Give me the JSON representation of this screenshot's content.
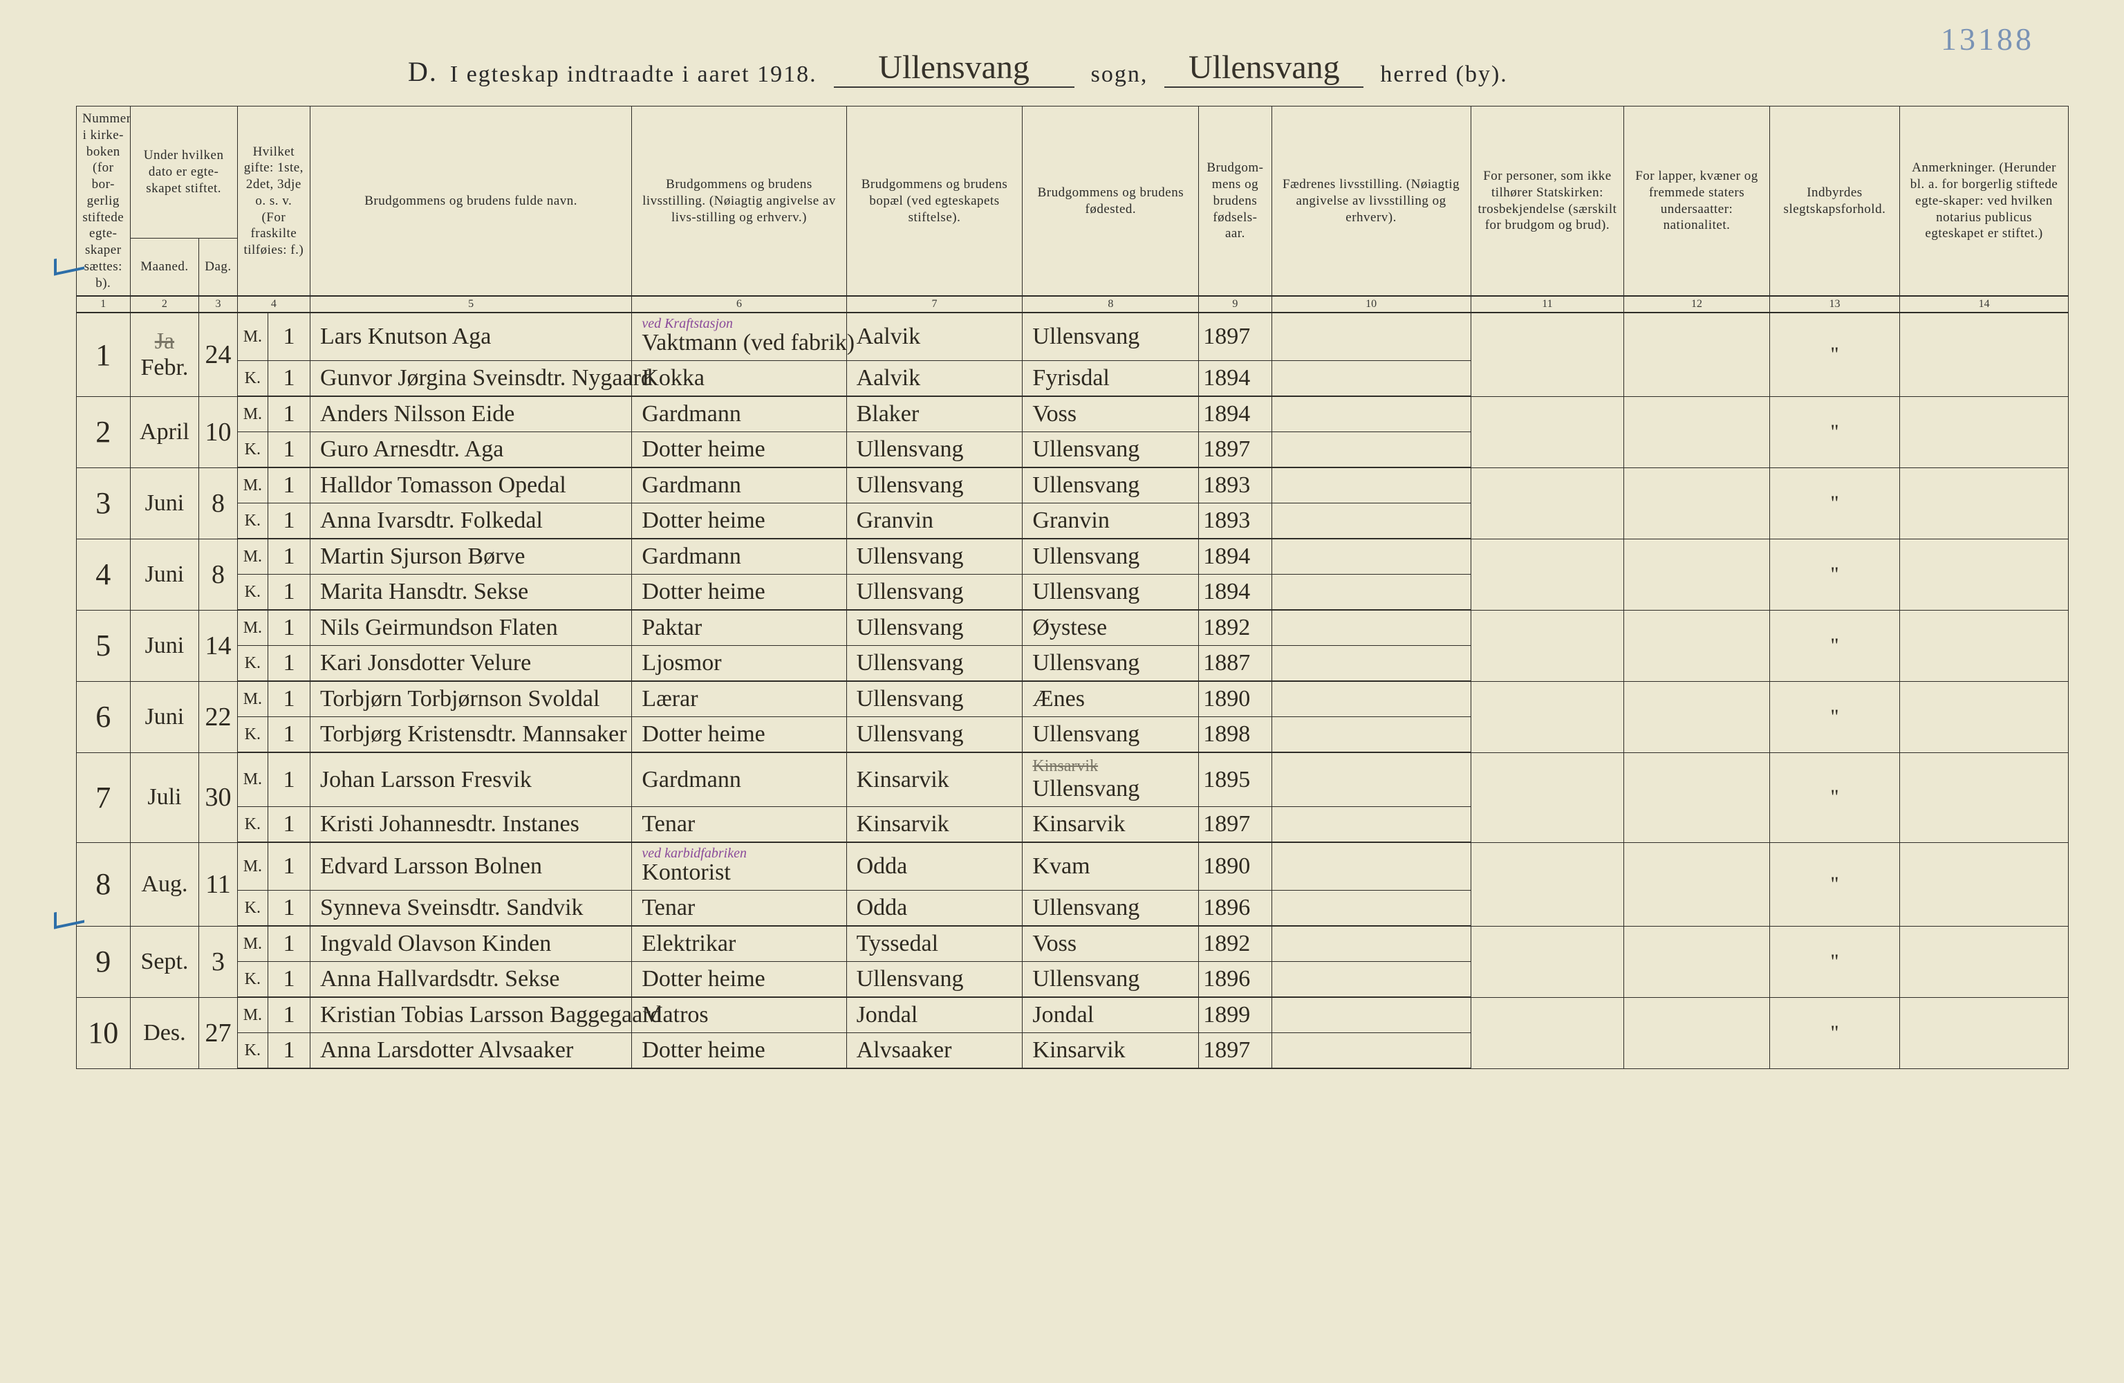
{
  "corner_note": "13188",
  "title": {
    "prefix": "D.",
    "text": "I egteskap indtraadte i aaret 1918.",
    "sogn_value": "Ullensvang",
    "sogn_label": "sogn,",
    "herred_value": "Ullensvang",
    "herred_label": "herred (by)."
  },
  "header": {
    "c1": "Nummer i kirke-boken (for bor-gerlig stiftede egte-skaper sættes: b).",
    "c2a": "Under hvilken dato er egte-skapet stiftet.",
    "c2_m": "Maaned.",
    "c2_d": "Dag.",
    "c4": "Hvilket gifte: 1ste, 2det, 3dje o. s. v. (For fraskilte tilføies: f.)",
    "c5": "Brudgommens og brudens fulde navn.",
    "c6": "Brudgommens og brudens livsstilling. (Nøiagtig angivelse av livs-stilling og erhverv.)",
    "c7": "Brudgommens og brudens bopæl (ved egteskapets stiftelse).",
    "c8": "Brudgommens og brudens fødested.",
    "c9": "Brudgom-mens og brudens fødsels-aar.",
    "c10": "Fædrenes livsstilling. (Nøiagtig angivelse av livsstilling og erhverv).",
    "c11": "For personer, som ikke tilhører Statskirken: trosbekjendelse (særskilt for brudgom og brud).",
    "c12": "For lapper, kvæner og fremmede staters undersaatter: nationalitet.",
    "c13": "Indbyrdes slegtskapsforhold.",
    "c14": "Anmerkninger. (Herunder bl. a. for borgerlig stiftede egte-skaper: ved hvilken notarius publicus egteskapet er stiftet.)"
  },
  "colnums": [
    "1",
    "2",
    "3",
    "4",
    "5",
    "6",
    "7",
    "8",
    "9",
    "10",
    "11",
    "12",
    "13",
    "14"
  ],
  "colors": {
    "paper": "#ece8d2",
    "ink": "#2d2920",
    "rule": "#2f2d28",
    "blue_pencil": "#7a93b5",
    "purple_annot": "#8a4a9a",
    "blue_tick": "#2d6ea8"
  },
  "typography": {
    "printed_family": "Times New Roman",
    "script_family": "Brush Script MT",
    "header_fontsize_pt": 14,
    "body_script_fontsize_pt": 26,
    "title_fontsize_pt": 26
  },
  "tick_rows": [
    1,
    8
  ],
  "entries": [
    {
      "idx": "1",
      "month": "Febr.",
      "month_struck": "Ja",
      "day": "24",
      "groom": {
        "mk": "M.",
        "gifte": "1",
        "name": "Lars Knutson Aga",
        "occ": "Vaktmann (ved fabrik)",
        "occ_annot": "ved Kraftstasjon",
        "residence": "Aalvik",
        "birthplace": "Ullensvang",
        "year": "1897"
      },
      "bride": {
        "mk": "K.",
        "gifte": "1",
        "name": "Gunvor Jørgina Sveinsdtr. Nygaard",
        "occ": "Kokka",
        "residence": "Aalvik",
        "birthplace": "Fyrisdal",
        "year": "1894"
      },
      "ditto": "\""
    },
    {
      "idx": "2",
      "month": "April",
      "day": "10",
      "groom": {
        "mk": "M.",
        "gifte": "1",
        "name": "Anders Nilsson Eide",
        "occ": "Gardmann",
        "residence": "Blaker",
        "birthplace": "Voss",
        "year": "1894"
      },
      "bride": {
        "mk": "K.",
        "gifte": "1",
        "name": "Guro Arnesdtr. Aga",
        "occ": "Dotter heime",
        "residence": "Ullensvang",
        "birthplace": "Ullensvang",
        "year": "1897"
      },
      "ditto": "\""
    },
    {
      "idx": "3",
      "month": "Juni",
      "day": "8",
      "groom": {
        "mk": "M.",
        "gifte": "1",
        "name": "Halldor Tomasson Opedal",
        "occ": "Gardmann",
        "residence": "Ullensvang",
        "birthplace": "Ullensvang",
        "year": "1893"
      },
      "bride": {
        "mk": "K.",
        "gifte": "1",
        "name": "Anna Ivarsdtr. Folkedal",
        "occ": "Dotter heime",
        "residence": "Granvin",
        "birthplace": "Granvin",
        "year": "1893"
      },
      "ditto": "\""
    },
    {
      "idx": "4",
      "month": "Juni",
      "day": "8",
      "groom": {
        "mk": "M.",
        "gifte": "1",
        "name": "Martin Sjurson Børve",
        "occ": "Gardmann",
        "residence": "Ullensvang",
        "birthplace": "Ullensvang",
        "year": "1894"
      },
      "bride": {
        "mk": "K.",
        "gifte": "1",
        "name": "Marita Hansdtr. Sekse",
        "occ": "Dotter heime",
        "residence": "Ullensvang",
        "birthplace": "Ullensvang",
        "year": "1894"
      },
      "ditto": "\""
    },
    {
      "idx": "5",
      "month": "Juni",
      "day": "14",
      "groom": {
        "mk": "M.",
        "gifte": "1",
        "name": "Nils Geirmundson Flaten",
        "occ": "Paktar",
        "residence": "Ullensvang",
        "birthplace": "Øystese",
        "year": "1892"
      },
      "bride": {
        "mk": "K.",
        "gifte": "1",
        "name": "Kari Jonsdotter Velure",
        "occ": "Ljosmor",
        "residence": "Ullensvang",
        "birthplace": "Ullensvang",
        "year": "1887"
      },
      "ditto": "\""
    },
    {
      "idx": "6",
      "month": "Juni",
      "day": "22",
      "groom": {
        "mk": "M.",
        "gifte": "1",
        "name": "Torbjørn Torbjørnson Svoldal",
        "occ": "Lærar",
        "residence": "Ullensvang",
        "birthplace": "Ænes",
        "year": "1890"
      },
      "bride": {
        "mk": "K.",
        "gifte": "1",
        "name": "Torbjørg Kristensdtr. Mannsaker",
        "occ": "Dotter heime",
        "residence": "Ullensvang",
        "birthplace": "Ullensvang",
        "year": "1898"
      },
      "ditto": "\""
    },
    {
      "idx": "7",
      "month": "Juli",
      "day": "30",
      "groom": {
        "mk": "M.",
        "gifte": "1",
        "name": "Johan Larsson Fresvik",
        "occ": "Gardmann",
        "residence": "Kinsarvik",
        "birthplace": "Ullensvang",
        "birthplace_struck": "Kinsarvik",
        "year": "1895"
      },
      "bride": {
        "mk": "K.",
        "gifte": "1",
        "name": "Kristi Johannesdtr. Instanes",
        "occ": "Tenar",
        "residence": "Kinsarvik",
        "birthplace": "Kinsarvik",
        "year": "1897"
      },
      "ditto": "\""
    },
    {
      "idx": "8",
      "month": "Aug.",
      "day": "11",
      "groom": {
        "mk": "M.",
        "gifte": "1",
        "name": "Edvard Larsson Bolnen",
        "occ": "Kontorist",
        "occ_annot": "ved karbidfabriken",
        "residence": "Odda",
        "birthplace": "Kvam",
        "year": "1890"
      },
      "bride": {
        "mk": "K.",
        "gifte": "1",
        "name": "Synneva Sveinsdtr. Sandvik",
        "occ": "Tenar",
        "residence": "Odda",
        "birthplace": "Ullensvang",
        "year": "1896"
      },
      "ditto": "\""
    },
    {
      "idx": "9",
      "month": "Sept.",
      "day": "3",
      "groom": {
        "mk": "M.",
        "gifte": "1",
        "name": "Ingvald Olavson Kinden",
        "occ": "Elektrikar",
        "residence": "Tyssedal",
        "birthplace": "Voss",
        "year": "1892"
      },
      "bride": {
        "mk": "K.",
        "gifte": "1",
        "name": "Anna Hallvardsdtr. Sekse",
        "occ": "Dotter heime",
        "residence": "Ullensvang",
        "birthplace": "Ullensvang",
        "year": "1896"
      },
      "ditto": "\""
    },
    {
      "idx": "10",
      "month": "Des.",
      "day": "27",
      "groom": {
        "mk": "M.",
        "gifte": "1",
        "name": "Kristian Tobias Larsson Baggegaard",
        "occ": "Matros",
        "residence": "Jondal",
        "birthplace": "Jondal",
        "year": "1899"
      },
      "bride": {
        "mk": "K.",
        "gifte": "1",
        "name": "Anna Larsdotter Alvsaaker",
        "occ": "Dotter heime",
        "residence": "Alvsaaker",
        "birthplace": "Kinsarvik",
        "year": "1897"
      },
      "ditto": "\""
    }
  ]
}
